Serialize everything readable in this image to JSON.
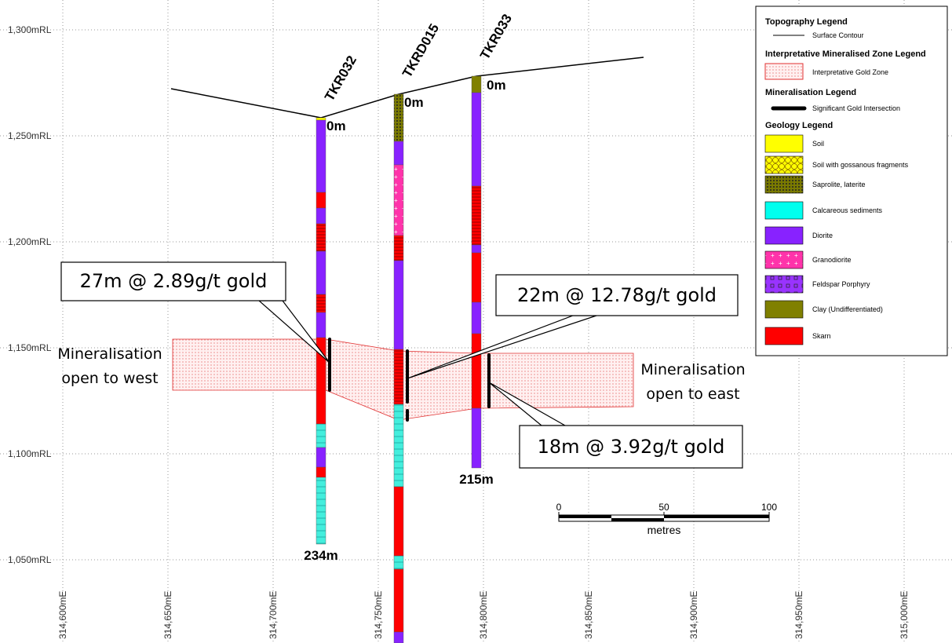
{
  "y_axis_labels": [
    "1,300mRL",
    "1,250mRL",
    "1,200mRL",
    "1,150mRL",
    "1,100mRL",
    "1,050mRL"
  ],
  "x_axis_labels": [
    "314,600mE",
    "314,650mE",
    "314,700mE",
    "314,750mE",
    "314,800mE",
    "314,850mE",
    "314,900mE",
    "314,950mE",
    "315,000mE"
  ],
  "holes": [
    {
      "name": "TKR032",
      "top": "0m",
      "bottom": "234m"
    },
    {
      "name": "TKRD015",
      "top": "0m"
    },
    {
      "name": "TKR033",
      "top": "0m",
      "bottom": "215m"
    }
  ],
  "callouts": [
    "27m @ 2.89g/t gold",
    "22m @ 12.78g/t gold",
    "18m @ 3.92g/t gold"
  ],
  "annotations": [
    [
      "Mineralisation",
      "open to west"
    ],
    [
      "Mineralisation",
      "open to east"
    ]
  ],
  "scale_bar": {
    "ticks": [
      "0",
      "50",
      "100"
    ],
    "unit": "metres"
  },
  "legend": {
    "sections": [
      {
        "heading": "Topography Legend",
        "items": [
          "Surface Contour"
        ]
      },
      {
        "heading": "Interpretative Mineralised Zone Legend",
        "items": [
          "Interpretative Gold Zone"
        ]
      },
      {
        "heading": "Mineralisation Legend",
        "items": [
          "Significant Gold Intersection"
        ]
      },
      {
        "heading": "Geology Legend",
        "items": [
          "Soil",
          "Soil with gossanous fragments",
          "Saprolite, laterite",
          "Calcareous sediments",
          "Diorite",
          "Granodiorite",
          "Feldspar Porphyry",
          "Clay (Undifferentiated)",
          "Skarn"
        ]
      }
    ]
  }
}
